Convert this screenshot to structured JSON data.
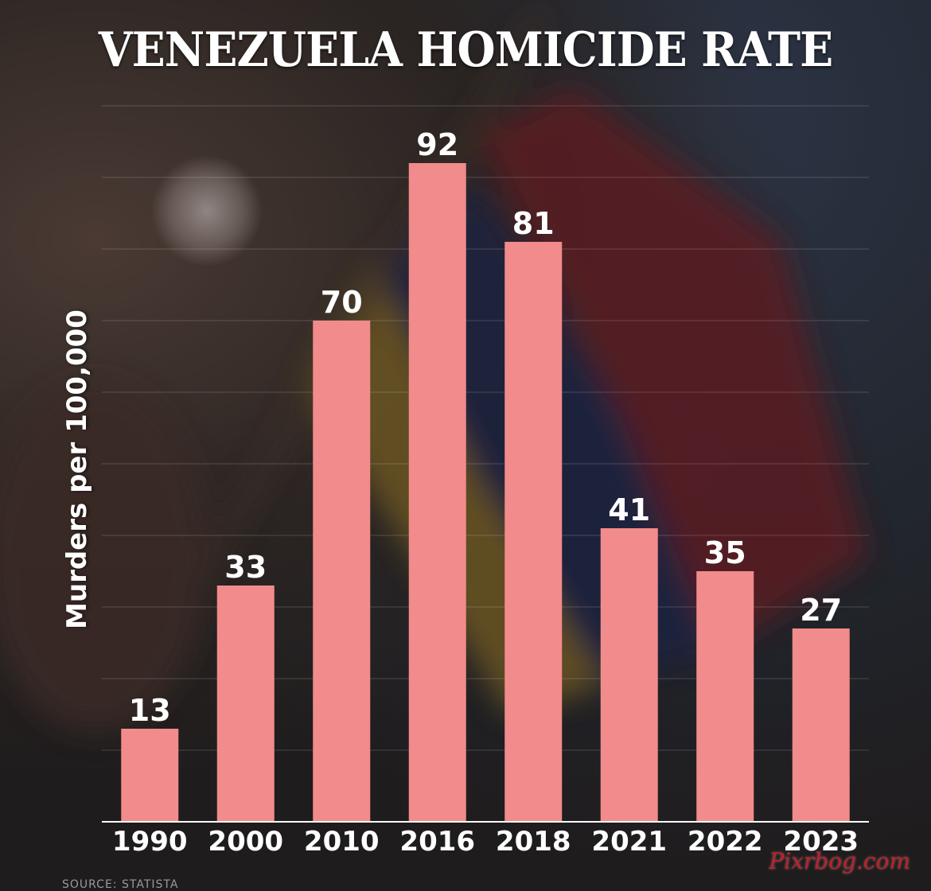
{
  "chart_data": {
    "type": "bar",
    "title": "VENEZUELA HOMICIDE RATE",
    "ylabel": "Murders per 100,000",
    "categories": [
      "1990",
      "2000",
      "2010",
      "2016",
      "2018",
      "2021",
      "2022",
      "2023"
    ],
    "values": [
      13,
      33,
      70,
      92,
      81,
      41,
      35,
      27
    ],
    "ylim": [
      0,
      100
    ],
    "grid": true,
    "bar_color": "#f28b8b",
    "source": "SOURCE: STATISTA"
  },
  "watermark": "Pixrbog.com"
}
